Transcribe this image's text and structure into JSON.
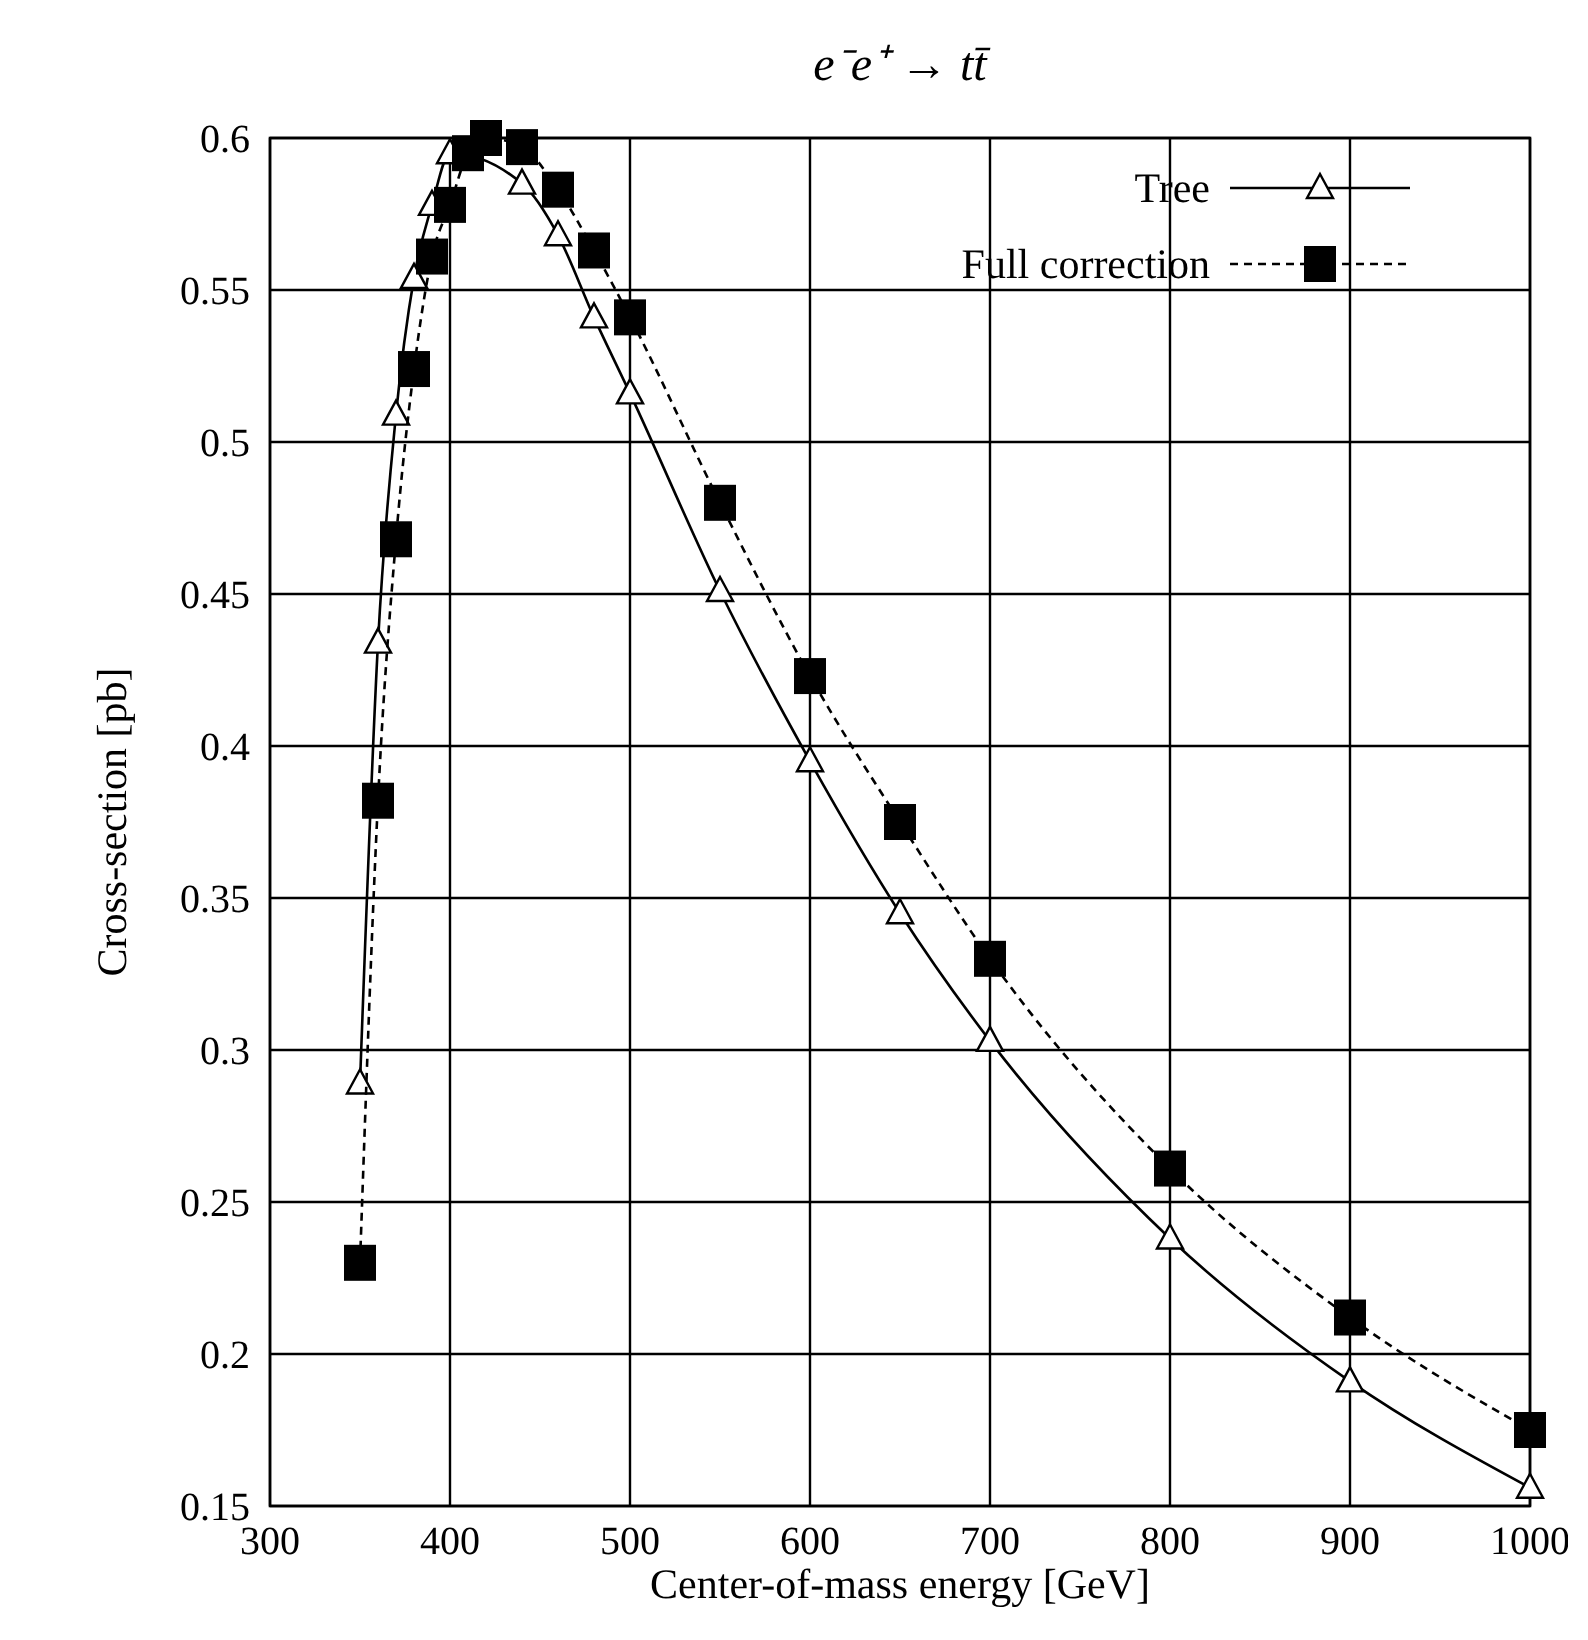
{
  "chart_data": {
    "type": "line",
    "title": "e⁻e⁺ → tt̄",
    "xlabel": "Center-of-mass energy [GeV]",
    "ylabel": "Cross-section [pb]",
    "xlim": [
      300,
      1000
    ],
    "xticks": [
      300,
      400,
      500,
      600,
      700,
      800,
      900,
      1000
    ],
    "ylim": [
      0.15,
      0.6
    ],
    "yticks": [
      0.15,
      0.2,
      0.25,
      0.3,
      0.35,
      0.4,
      0.45,
      0.5,
      0.55,
      0.6
    ],
    "grid": true,
    "legend": "top right",
    "series": [
      {
        "name": "Tree",
        "color": "#000000",
        "marker": "triangle",
        "line_style": "solid",
        "x": [
          350,
          360,
          370,
          380,
          390,
          400,
          440,
          460,
          480,
          500,
          550,
          600,
          650,
          700,
          800,
          900,
          1000
        ],
        "values": [
          0.289,
          0.434,
          0.509,
          0.554,
          0.578,
          0.595,
          0.585,
          0.568,
          0.541,
          0.516,
          0.451,
          0.395,
          0.345,
          0.303,
          0.238,
          0.191,
          0.156
        ]
      },
      {
        "name": "Full correction",
        "color": "#000000",
        "marker": "square",
        "line_style": "dashed",
        "x": [
          350,
          360,
          370,
          380,
          390,
          400,
          410,
          420,
          440,
          460,
          480,
          500,
          550,
          600,
          650,
          700,
          800,
          900,
          1000
        ],
        "values": [
          0.23,
          0.382,
          0.468,
          0.524,
          0.561,
          0.578,
          0.595,
          0.6,
          0.597,
          0.583,
          0.563,
          0.541,
          0.48,
          0.423,
          0.375,
          0.33,
          0.261,
          0.212,
          0.175
        ]
      }
    ]
  }
}
